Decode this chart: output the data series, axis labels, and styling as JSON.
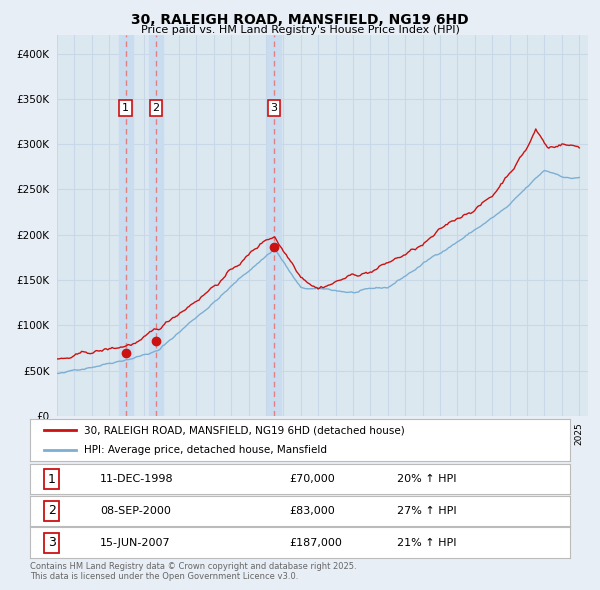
{
  "title": "30, RALEIGH ROAD, MANSFIELD, NG19 6HD",
  "subtitle": "Price paid vs. HM Land Registry's House Price Index (HPI)",
  "legend_label_red": "30, RALEIGH ROAD, MANSFIELD, NG19 6HD (detached house)",
  "legend_label_blue": "HPI: Average price, detached house, Mansfield",
  "ylim": [
    0,
    420000
  ],
  "yticks": [
    0,
    50000,
    100000,
    150000,
    200000,
    250000,
    300000,
    350000,
    400000
  ],
  "fig_bg_color": "#e8eef5",
  "plot_bg_color": "#dce8f0",
  "grid_color": "#c8d8e8",
  "red_color": "#cc1111",
  "blue_color": "#7bafd4",
  "dashed_line_color": "#e08080",
  "shade_color": "#c8dcf0",
  "transaction1": {
    "date_str": "11-DEC-1998",
    "date_num": 1998.94,
    "price": 70000,
    "label": "1"
  },
  "transaction2": {
    "date_str": "08-SEP-2000",
    "date_num": 2000.69,
    "price": 83000,
    "label": "2"
  },
  "transaction3": {
    "date_str": "15-JUN-2007",
    "date_num": 2007.46,
    "price": 187000,
    "label": "3"
  },
  "footer": "Contains HM Land Registry data © Crown copyright and database right 2025.\nThis data is licensed under the Open Government Licence v3.0.",
  "table_rows": [
    {
      "num": "1",
      "date": "11-DEC-1998",
      "price": "£70,000",
      "hpi": "20% ↑ HPI"
    },
    {
      "num": "2",
      "date": "08-SEP-2000",
      "price": "£83,000",
      "hpi": "27% ↑ HPI"
    },
    {
      "num": "3",
      "date": "15-JUN-2007",
      "price": "£187,000",
      "hpi": "21% ↑ HPI"
    }
  ]
}
